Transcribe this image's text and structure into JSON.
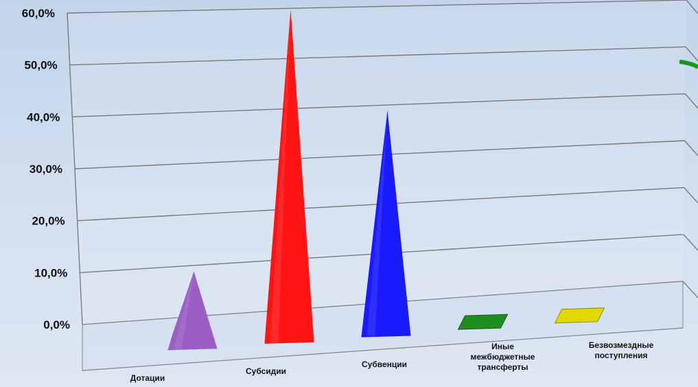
{
  "chart_data": {
    "type": "bar",
    "style": "3d-pyramid",
    "categories": [
      "Дотации",
      "Субсидии",
      "Субвенции",
      "Иные межбюджетные трансферты",
      "Безвозмездные поступления"
    ],
    "category_lines": [
      [
        "Дотации"
      ],
      [
        "Субсидии"
      ],
      [
        "Субвенции"
      ],
      [
        "Иные",
        "межбюджетные",
        "трансферты"
      ],
      [
        "Безвозмездные",
        "поступления"
      ]
    ],
    "values": [
      13.0,
      64.0,
      42.5,
      0.1,
      0.1
    ],
    "colors": [
      "#9a5ec4",
      "#ff1414",
      "#1a1aff",
      "#1e8f1e",
      "#e0d800"
    ],
    "title": "",
    "xlabel": "",
    "ylabel": "",
    "ylim": [
      0,
      60
    ],
    "y_ticks": [
      "0,0%",
      "10,0%",
      "20,0%",
      "30,0%",
      "40,0%",
      "50,0%",
      "60,0%"
    ],
    "grid": true,
    "legend": "none"
  }
}
